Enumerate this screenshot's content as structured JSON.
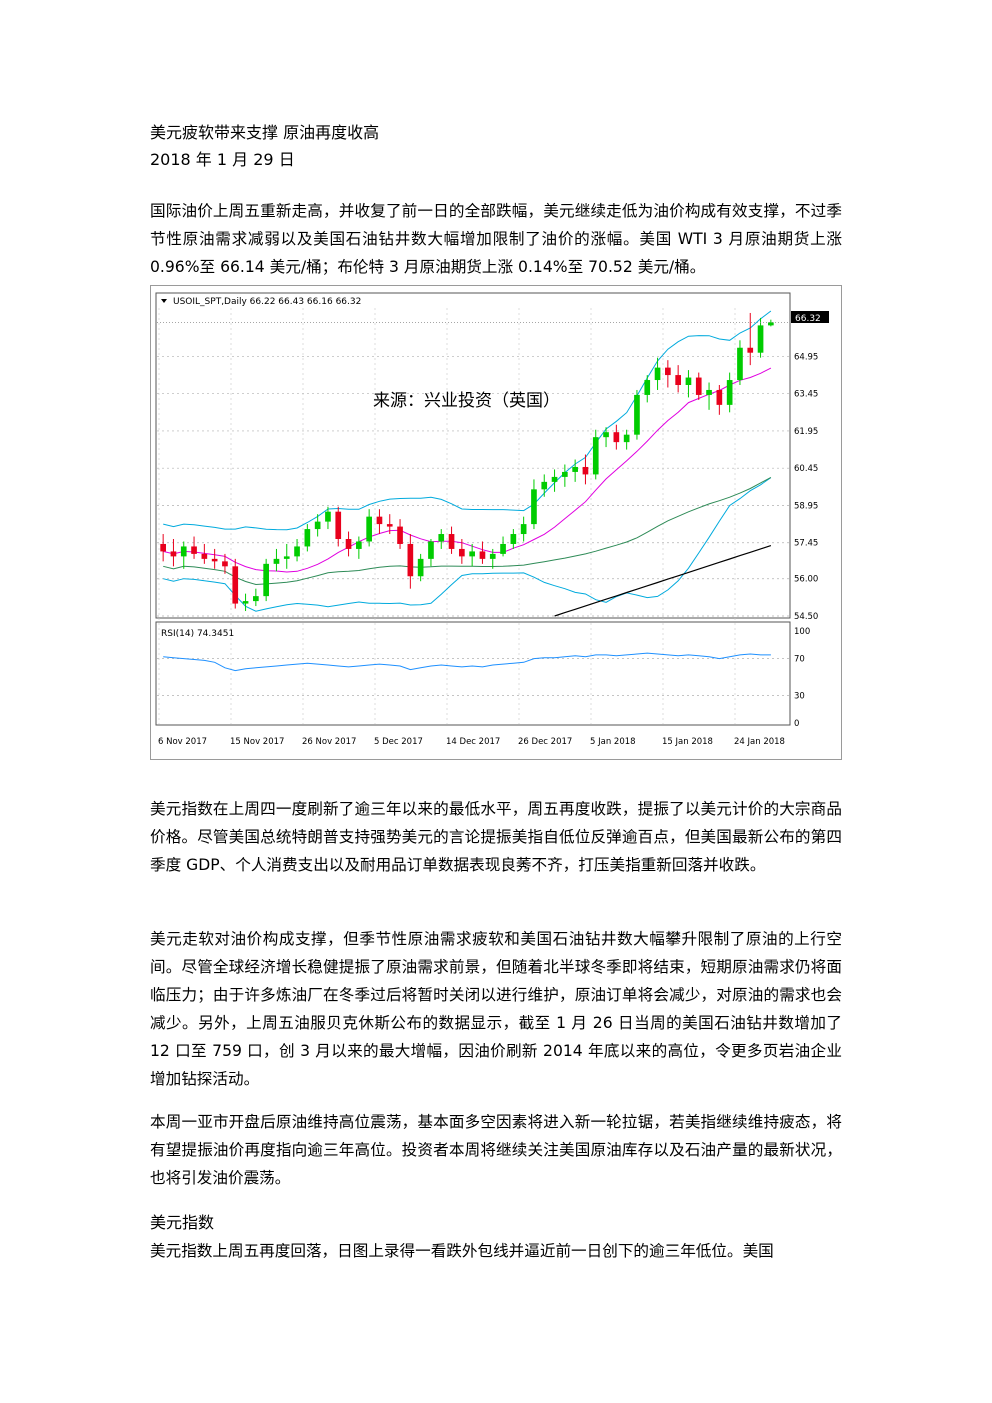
{
  "doc": {
    "title": "美元疲软带来支撑 原油再度收高",
    "date": "2018 年 1 月 29 日",
    "p1": "国际油价上周五重新走高，并收复了前一日的全部跌幅，美元继续走低为油价构成有效支撑，不过季节性原油需求减弱以及美国石油钻井数大幅增加限制了油价的涨幅。美国 WTI 3 月原油期货上涨 0.96%至 66.14 美元/桶；布伦特 3 月原油期货上涨 0.14%至 70.52 美元/桶。",
    "p2": "美元指数在上周四一度刷新了逾三年以来的最低水平，周五再度收跌，提振了以美元计价的大宗商品价格。尽管美国总统特朗普支持强势美元的言论提振美指自低位反弹逾百点，但美国最新公布的第四季度 GDP、个人消费支出以及耐用品订单数据表现良莠不齐，打压美指重新回落并收跌。",
    "p3": "美元走软对油价构成支撑，但季节性原油需求疲软和美国石油钻井数大幅攀升限制了原油的上行空间。尽管全球经济增长稳健提振了原油需求前景，但随着北半球冬季即将结束，短期原油需求仍将面临压力；由于许多炼油厂在冬季过后将暂时关闭以进行维护，原油订单将会减少，对原油的需求也会减少。另外，上周五油服贝克休斯公布的数据显示，截至 1 月 26 日当周的美国石油钻井数增加了 12 口至 759 口，创 3 月以来的最大增幅，因油价刷新 2014 年底以来的高位，令更多页岩油企业增加钻探活动。",
    "p4": "本周一亚市开盘后原油维持高位震荡，基本面多空因素将进入新一轮拉锯，若美指继续维持疲态，将有望提振油价再度指向逾三年高位。投资者本周将继续关注美国原油库存以及石油产量的最新状况，也将引发油价震荡。",
    "section_heading": "美元指数",
    "p5": "美元指数上周五再度回落，日图上录得一看跌外包线并逼近前一日创下的逾三年低位。美国"
  },
  "chart": {
    "header": "USOIL_SPT,Daily  66.22 66.43 66.16 66.32",
    "watermark": "来源：兴业投资（英国）",
    "price_badge": "66.32",
    "rsi_label": "RSI(14) 74.3451",
    "colors": {
      "up": "#00cc00",
      "down": "#e8001c",
      "bb": "#00aadd",
      "ma_mag": "#e000e0",
      "ma_green": "#2e8b57",
      "ma_black": "#000000",
      "rsi": "#1e90ff"
    }
  },
  "chart_data": {
    "type": "candlestick",
    "title": "USOIL_SPT,Daily",
    "price_axis": {
      "ticks": [
        54.5,
        56.0,
        57.45,
        58.95,
        60.45,
        61.95,
        63.45,
        64.95
      ],
      "ylim": [
        54.5,
        66.9
      ]
    },
    "rsi_axis": {
      "ticks": [
        100,
        70,
        30,
        0
      ],
      "ylim": [
        0,
        100
      ]
    },
    "x_labels": [
      "6 Nov 2017",
      "15 Nov 2017",
      "26 Nov 2017",
      "5 Dec 2017",
      "14 Dec 2017",
      "26 Dec 2017",
      "5 Jan 2018",
      "15 Jan 2018",
      "24 Jan 2018"
    ],
    "ohlc": [
      [
        57.4,
        57.8,
        56.7,
        57.1
      ],
      [
        57.1,
        57.6,
        56.5,
        56.9
      ],
      [
        56.9,
        57.5,
        56.4,
        57.3
      ],
      [
        57.3,
        57.7,
        56.8,
        57.0
      ],
      [
        57.0,
        57.4,
        56.6,
        56.8
      ],
      [
        56.8,
        57.2,
        56.4,
        56.7
      ],
      [
        56.7,
        57.0,
        56.2,
        56.5
      ],
      [
        56.5,
        56.8,
        54.8,
        55.0
      ],
      [
        55.0,
        55.4,
        54.7,
        55.1
      ],
      [
        55.1,
        55.6,
        54.9,
        55.3
      ],
      [
        55.3,
        56.8,
        55.1,
        56.6
      ],
      [
        56.6,
        57.2,
        56.3,
        56.8
      ],
      [
        56.8,
        57.4,
        56.4,
        56.9
      ],
      [
        56.9,
        57.6,
        56.7,
        57.3
      ],
      [
        57.3,
        58.2,
        57.1,
        58.0
      ],
      [
        58.0,
        58.6,
        57.7,
        58.3
      ],
      [
        58.3,
        58.9,
        58.0,
        58.7
      ],
      [
        58.7,
        58.9,
        57.3,
        57.6
      ],
      [
        57.6,
        57.9,
        56.9,
        57.2
      ],
      [
        57.2,
        57.7,
        56.8,
        57.5
      ],
      [
        57.5,
        58.8,
        57.3,
        58.5
      ],
      [
        58.5,
        58.8,
        57.8,
        58.2
      ],
      [
        58.2,
        58.6,
        57.8,
        58.1
      ],
      [
        58.1,
        58.4,
        57.2,
        57.4
      ],
      [
        57.4,
        57.8,
        55.6,
        56.1
      ],
      [
        56.1,
        57.0,
        55.9,
        56.8
      ],
      [
        56.8,
        57.6,
        56.5,
        57.5
      ],
      [
        57.5,
        58.0,
        57.2,
        57.8
      ],
      [
        57.8,
        58.1,
        57.0,
        57.2
      ],
      [
        57.2,
        57.6,
        56.6,
        56.9
      ],
      [
        56.9,
        57.4,
        56.5,
        57.1
      ],
      [
        57.1,
        57.5,
        56.6,
        56.8
      ],
      [
        56.8,
        57.2,
        56.4,
        57.0
      ],
      [
        57.0,
        57.7,
        56.9,
        57.4
      ],
      [
        57.4,
        58.0,
        57.2,
        57.8
      ],
      [
        57.8,
        58.5,
        57.5,
        58.2
      ],
      [
        58.2,
        60.0,
        58.0,
        59.6
      ],
      [
        59.6,
        60.2,
        59.3,
        59.9
      ],
      [
        59.9,
        60.4,
        59.5,
        60.1
      ],
      [
        60.1,
        60.6,
        59.7,
        60.3
      ],
      [
        60.3,
        60.8,
        59.9,
        60.5
      ],
      [
        60.5,
        61.0,
        59.8,
        60.2
      ],
      [
        60.2,
        62.0,
        60.0,
        61.7
      ],
      [
        61.7,
        62.1,
        61.3,
        61.9
      ],
      [
        61.9,
        62.2,
        61.2,
        61.5
      ],
      [
        61.5,
        62.0,
        61.2,
        61.8
      ],
      [
        61.8,
        63.6,
        61.6,
        63.4
      ],
      [
        63.4,
        64.2,
        63.1,
        64.0
      ],
      [
        64.0,
        64.9,
        63.6,
        64.5
      ],
      [
        64.5,
        64.8,
        63.7,
        64.2
      ],
      [
        64.2,
        64.6,
        63.5,
        63.8
      ],
      [
        63.8,
        64.4,
        63.3,
        64.1
      ],
      [
        64.1,
        64.3,
        63.2,
        63.4
      ],
      [
        63.4,
        63.9,
        62.8,
        63.6
      ],
      [
        63.6,
        63.8,
        62.6,
        63.0
      ],
      [
        63.0,
        64.3,
        62.7,
        64.0
      ],
      [
        64.0,
        65.6,
        63.8,
        65.3
      ],
      [
        65.3,
        66.7,
        64.6,
        65.1
      ],
      [
        65.1,
        66.5,
        64.9,
        66.2
      ],
      [
        66.2,
        66.43,
        66.16,
        66.32
      ]
    ],
    "rsi": [
      72,
      71,
      70,
      69,
      68,
      66,
      60,
      57,
      59,
      60,
      61,
      62,
      63,
      64,
      65,
      64,
      63,
      62,
      61,
      62,
      63,
      64,
      63,
      62,
      58,
      60,
      62,
      63,
      62,
      61,
      62,
      61,
      63,
      64,
      65,
      66,
      70,
      71,
      71,
      72,
      73,
      72,
      74,
      74,
      73,
      74,
      75,
      76,
      75,
      74,
      73,
      74,
      73,
      72,
      70,
      72,
      74,
      75,
      74,
      74
    ]
  }
}
